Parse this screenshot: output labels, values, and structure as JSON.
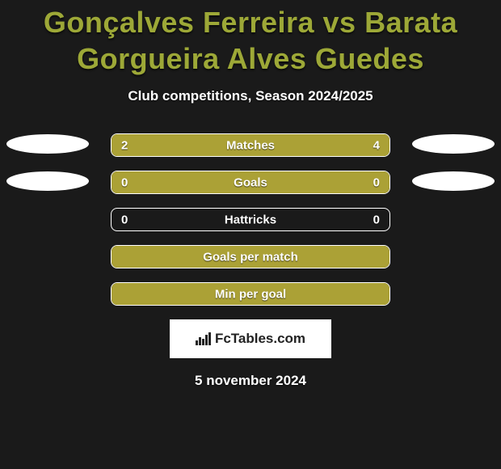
{
  "title": "Gonçalves Ferreira vs Barata Gorgueira Alves Guedes",
  "subtitle": "Club competitions, Season 2024/2025",
  "title_color": "#9da837",
  "bar_fill_color": "#aba136",
  "badge_text": "FcTables.com",
  "date": "5 november 2024",
  "rows": [
    {
      "label": "Matches",
      "left": "2",
      "right": "4",
      "left_pct": 30,
      "right_pct": 70,
      "show_left_ellipse": true,
      "show_right_ellipse": true,
      "left_fill": true,
      "right_fill": true
    },
    {
      "label": "Goals",
      "left": "0",
      "right": "0",
      "left_pct": 0,
      "right_pct": 100,
      "show_left_ellipse": true,
      "show_right_ellipse": true,
      "left_fill": false,
      "right_fill": true
    },
    {
      "label": "Hattricks",
      "left": "0",
      "right": "0",
      "left_pct": 0,
      "right_pct": 0,
      "show_left_ellipse": false,
      "show_right_ellipse": false,
      "left_fill": false,
      "right_fill": false
    },
    {
      "label": "Goals per match",
      "left": "",
      "right": "",
      "left_pct": 0,
      "right_pct": 100,
      "show_left_ellipse": false,
      "show_right_ellipse": false,
      "left_fill": false,
      "right_fill": true
    },
    {
      "label": "Min per goal",
      "left": "",
      "right": "",
      "left_pct": 0,
      "right_pct": 100,
      "show_left_ellipse": false,
      "show_right_ellipse": false,
      "left_fill": false,
      "right_fill": true
    }
  ]
}
